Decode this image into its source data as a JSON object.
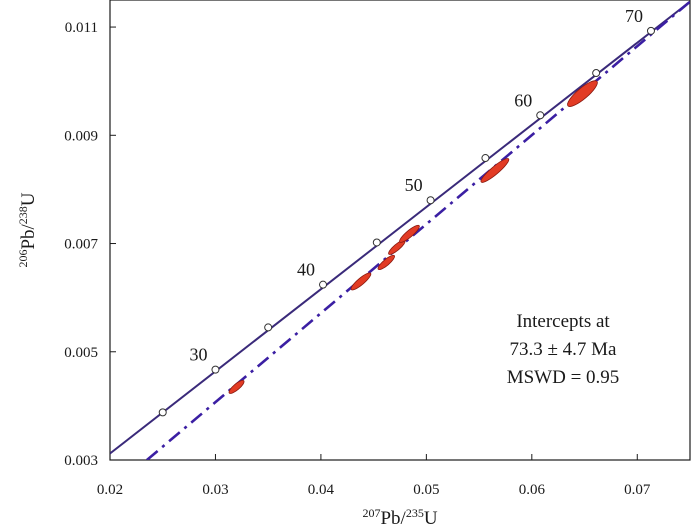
{
  "chart_data": {
    "type": "scatter",
    "subtype": "U-Pb concordia diagram",
    "title": "",
    "xlabel": {
      "pre": "207",
      "mid": "Pb/",
      "sup2": "235",
      "post": "U"
    },
    "ylabel": {
      "pre": "206",
      "mid": "Pb/",
      "sup2": "238",
      "post": "U"
    },
    "xlim": [
      0.02,
      0.075
    ],
    "ylim": [
      0.003,
      0.0115
    ],
    "x_ticks": [
      0.02,
      0.03,
      0.04,
      0.05,
      0.06,
      0.07
    ],
    "x_tick_labels": [
      "0.02",
      "0.03",
      "0.04",
      "0.05",
      "0.06",
      "0.07"
    ],
    "y_ticks": [
      0.003,
      0.005,
      0.007,
      0.009,
      0.011
    ],
    "y_tick_labels": [
      "0.003",
      "0.005",
      "0.007",
      "0.009",
      "0.011"
    ],
    "concordia_line": {
      "x": [
        0.02,
        0.075
      ],
      "y": [
        0.00312,
        0.01147
      ]
    },
    "discordia_line": {
      "x": [
        0.0235,
        0.075
      ],
      "y": [
        0.003,
        0.01147
      ]
    },
    "age_markers": [
      {
        "age": 25,
        "x": 0.025,
        "y": 0.00388,
        "label": ""
      },
      {
        "age": 30,
        "x": 0.03,
        "y": 0.00467,
        "label": "30"
      },
      {
        "age": 35,
        "x": 0.035,
        "y": 0.00545,
        "label": ""
      },
      {
        "age": 40,
        "x": 0.0402,
        "y": 0.00624,
        "label": "40"
      },
      {
        "age": 45,
        "x": 0.0453,
        "y": 0.00702,
        "label": ""
      },
      {
        "age": 50,
        "x": 0.0504,
        "y": 0.0078,
        "label": "50"
      },
      {
        "age": 55,
        "x": 0.0556,
        "y": 0.00858,
        "label": ""
      },
      {
        "age": 60,
        "x": 0.0608,
        "y": 0.00937,
        "label": "60"
      },
      {
        "age": 65,
        "x": 0.0661,
        "y": 0.01015,
        "label": ""
      },
      {
        "age": 70,
        "x": 0.0713,
        "y": 0.01093,
        "label": "70"
      }
    ],
    "error_ellipses": [
      {
        "x": 0.032,
        "y": 0.00435,
        "rx": 0.0009,
        "ry": 6e-05,
        "color": "#e23b24"
      },
      {
        "x": 0.0438,
        "y": 0.0063,
        "rx": 0.0012,
        "ry": 0.00011,
        "color": "#e23b24"
      },
      {
        "x": 0.0462,
        "y": 0.00665,
        "rx": 0.001,
        "ry": 0.0001,
        "color": "#e23b24"
      },
      {
        "x": 0.0472,
        "y": 0.00693,
        "rx": 0.001,
        "ry": 0.0001,
        "color": "#e23b24"
      },
      {
        "x": 0.0484,
        "y": 0.00718,
        "rx": 0.0012,
        "ry": 0.00011,
        "color": "#e23b24"
      },
      {
        "x": 0.0565,
        "y": 0.00835,
        "rx": 0.0017,
        "ry": 0.00013,
        "color": "#e23b24"
      },
      {
        "x": 0.0648,
        "y": 0.00977,
        "rx": 0.0018,
        "ry": 0.00018,
        "color": "#e23b24"
      }
    ],
    "annotation": {
      "line1": "Intercepts at",
      "line2": "73.3 ± 4.7 Ma",
      "line3": "MSWD = 0.95"
    },
    "colors": {
      "concordia": "#3a2a7a",
      "discordia": "#3b1fa3",
      "ellipse_fill": "#e23b24",
      "ellipse_stroke": "#8a1a10",
      "axis": "#1a1a1a"
    }
  }
}
